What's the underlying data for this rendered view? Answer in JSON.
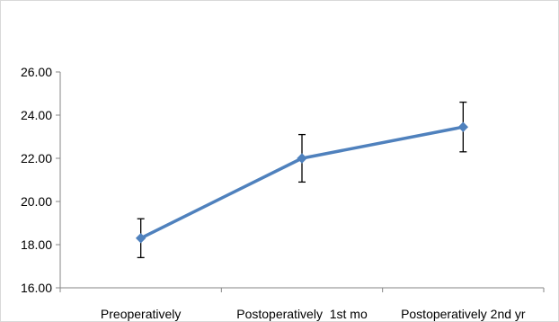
{
  "chart_data": {
    "type": "line",
    "title": "",
    "xlabel": "",
    "ylabel": "",
    "categories": [
      "Preoperatively",
      "Postoperatively  1st mo",
      "Postoperatively 2nd yr"
    ],
    "series": [
      {
        "values": [
          18.3,
          22.0,
          23.45
        ],
        "error_low": [
          17.4,
          20.9,
          22.3
        ],
        "error_high": [
          19.2,
          23.1,
          24.6
        ]
      }
    ],
    "ylim": [
      16,
      26
    ],
    "yticks": [
      "16.00",
      "18.00",
      "20.00",
      "22.00",
      "24.00",
      "26.00"
    ],
    "grid": false,
    "legend": "none",
    "colors": {
      "line": "#4f81bd",
      "marker": "#4f81bd",
      "axis": "#868686",
      "error": "#000000"
    }
  }
}
